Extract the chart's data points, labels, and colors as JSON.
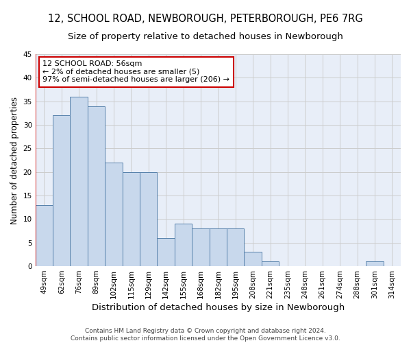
{
  "title_line1": "12, SCHOOL ROAD, NEWBOROUGH, PETERBOROUGH, PE6 7RG",
  "title_line2": "Size of property relative to detached houses in Newborough",
  "xlabel": "Distribution of detached houses by size in Newborough",
  "ylabel": "Number of detached properties",
  "categories": [
    "49sqm",
    "62sqm",
    "76sqm",
    "89sqm",
    "102sqm",
    "115sqm",
    "129sqm",
    "142sqm",
    "155sqm",
    "168sqm",
    "182sqm",
    "195sqm",
    "208sqm",
    "221sqm",
    "235sqm",
    "248sqm",
    "261sqm",
    "274sqm",
    "288sqm",
    "301sqm",
    "314sqm"
  ],
  "values": [
    13,
    32,
    36,
    34,
    22,
    20,
    20,
    6,
    9,
    8,
    8,
    8,
    3,
    1,
    0,
    0,
    0,
    0,
    0,
    1,
    0
  ],
  "bar_color": "#c8d8ec",
  "bar_edge_color": "#5580aa",
  "annotation_text": "12 SCHOOL ROAD: 56sqm\n← 2% of detached houses are smaller (5)\n97% of semi-detached houses are larger (206) →",
  "annotation_box_color": "#ffffff",
  "annotation_box_edge_color": "#cc0000",
  "ylim": [
    0,
    45
  ],
  "yticks": [
    0,
    5,
    10,
    15,
    20,
    25,
    30,
    35,
    40,
    45
  ],
  "grid_color": "#cccccc",
  "background_color": "#e8eef8",
  "footer_line1": "Contains HM Land Registry data © Crown copyright and database right 2024.",
  "footer_line2": "Contains public sector information licensed under the Open Government Licence v3.0.",
  "red_line_color": "#cc0000",
  "title_fontsize": 10.5,
  "subtitle_fontsize": 9.5,
  "tick_fontsize": 7.5,
  "ylabel_fontsize": 8.5,
  "xlabel_fontsize": 9.5,
  "annotation_fontsize": 8,
  "footer_fontsize": 6.5
}
